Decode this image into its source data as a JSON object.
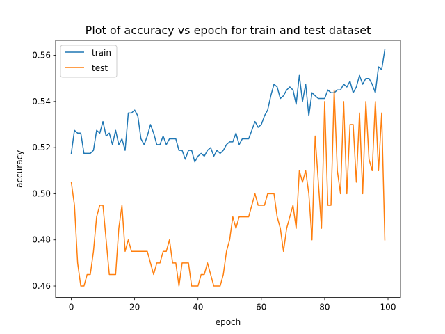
{
  "chart_data": {
    "type": "line",
    "title": "Plot of accuracy vs epoch for train and test dataset",
    "xlabel": "epoch",
    "ylabel": "accuracy",
    "xlim": [
      -4.95,
      103.95
    ],
    "ylim": [
      0.455,
      0.5665
    ],
    "xticks": [
      0,
      20,
      40,
      60,
      80,
      100
    ],
    "yticks": [
      0.46,
      0.48,
      0.5,
      0.52,
      0.54,
      0.56
    ],
    "ytick_labels": [
      "0.46",
      "0.48",
      "0.50",
      "0.52",
      "0.54",
      "0.56"
    ],
    "legend_position": "upper-left",
    "grid": false,
    "x": [
      0,
      1,
      2,
      3,
      4,
      5,
      6,
      7,
      8,
      9,
      10,
      11,
      12,
      13,
      14,
      15,
      16,
      17,
      18,
      19,
      20,
      21,
      22,
      23,
      24,
      25,
      26,
      27,
      28,
      29,
      30,
      31,
      32,
      33,
      34,
      35,
      36,
      37,
      38,
      39,
      40,
      41,
      42,
      43,
      44,
      45,
      46,
      47,
      48,
      49,
      50,
      51,
      52,
      53,
      54,
      55,
      56,
      57,
      58,
      59,
      60,
      61,
      62,
      63,
      64,
      65,
      66,
      67,
      68,
      69,
      70,
      71,
      72,
      73,
      74,
      75,
      76,
      77,
      78,
      79,
      80,
      81,
      82,
      83,
      84,
      85,
      86,
      87,
      88,
      89,
      90,
      91,
      92,
      93,
      94,
      95,
      96,
      97,
      98,
      99
    ],
    "series": [
      {
        "name": "train",
        "color": "#1f77b4",
        "values": [
          0.5175,
          0.5275,
          0.5263,
          0.5263,
          0.5175,
          0.5175,
          0.5175,
          0.5188,
          0.5275,
          0.5263,
          0.5313,
          0.525,
          0.5263,
          0.5213,
          0.5275,
          0.5213,
          0.5238,
          0.5188,
          0.535,
          0.535,
          0.5363,
          0.5338,
          0.5238,
          0.5213,
          0.525,
          0.53,
          0.5263,
          0.5213,
          0.5213,
          0.525,
          0.5213,
          0.5238,
          0.5238,
          0.5238,
          0.5188,
          0.5188,
          0.515,
          0.5188,
          0.5188,
          0.5138,
          0.5163,
          0.5175,
          0.5163,
          0.5188,
          0.52,
          0.5163,
          0.5188,
          0.5175,
          0.5188,
          0.5213,
          0.5225,
          0.5225,
          0.5263,
          0.5213,
          0.5238,
          0.5238,
          0.5238,
          0.5275,
          0.5313,
          0.5288,
          0.53,
          0.5338,
          0.5363,
          0.5425,
          0.5475,
          0.5463,
          0.5413,
          0.5425,
          0.545,
          0.5463,
          0.545,
          0.5388,
          0.5513,
          0.54,
          0.5475,
          0.5338,
          0.5438,
          0.5425,
          0.5413,
          0.5413,
          0.5413,
          0.545,
          0.5438,
          0.5438,
          0.545,
          0.545,
          0.5475,
          0.5463,
          0.5488,
          0.5438,
          0.5463,
          0.5513,
          0.5475,
          0.55,
          0.55,
          0.5475,
          0.5438,
          0.555,
          0.5538,
          0.5625
        ]
      },
      {
        "name": "test",
        "color": "#ff7f0e",
        "values": [
          0.505,
          0.495,
          0.47,
          0.46,
          0.46,
          0.465,
          0.465,
          0.475,
          0.49,
          0.495,
          0.495,
          0.48,
          0.465,
          0.465,
          0.465,
          0.485,
          0.495,
          0.475,
          0.48,
          0.475,
          0.475,
          0.475,
          0.475,
          0.475,
          0.475,
          0.47,
          0.465,
          0.47,
          0.47,
          0.475,
          0.475,
          0.48,
          0.47,
          0.47,
          0.46,
          0.47,
          0.47,
          0.47,
          0.46,
          0.46,
          0.46,
          0.465,
          0.465,
          0.47,
          0.465,
          0.46,
          0.46,
          0.46,
          0.465,
          0.475,
          0.48,
          0.49,
          0.485,
          0.49,
          0.49,
          0.49,
          0.49,
          0.495,
          0.5,
          0.495,
          0.495,
          0.495,
          0.5,
          0.5,
          0.5,
          0.49,
          0.485,
          0.475,
          0.485,
          0.49,
          0.495,
          0.485,
          0.51,
          0.505,
          0.51,
          0.5,
          0.48,
          0.525,
          0.505,
          0.485,
          0.54,
          0.495,
          0.495,
          0.545,
          0.51,
          0.5,
          0.54,
          0.5,
          0.53,
          0.53,
          0.505,
          0.535,
          0.5,
          0.54,
          0.515,
          0.51,
          0.54,
          0.51,
          0.535,
          0.48
        ]
      }
    ]
  }
}
